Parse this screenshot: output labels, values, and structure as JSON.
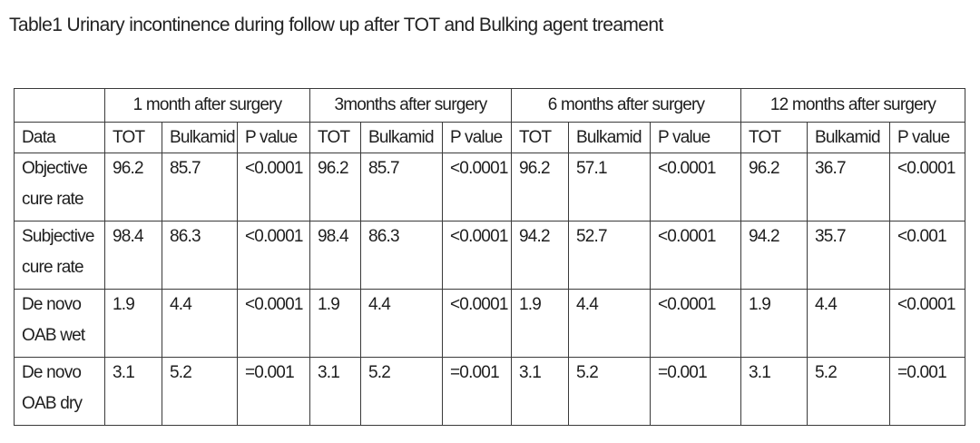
{
  "caption": "Table1 Urinary incontinence during follow up after TOT and Bulking agent treament",
  "table": {
    "groups": [
      "1 month after surgery",
      "3months after surgery",
      "6 months after surgery",
      "12 months after surgery"
    ],
    "subheaders": [
      "Data",
      "TOT",
      "Bulkamid",
      "P value",
      "TOT",
      "Bulkamid",
      "P value",
      "TOT",
      "Bulkamid",
      "P value",
      "TOT",
      "Bulkamid",
      "P value"
    ],
    "rows": [
      {
        "label": [
          "Objective",
          "cure rate"
        ],
        "cells": [
          "96.2",
          "85.7",
          "<0.0001",
          "96.2",
          "85.7",
          "<0.0001",
          "96.2",
          "57.1",
          "<0.0001",
          "96.2",
          "36.7",
          "<0.0001"
        ]
      },
      {
        "label": [
          "Subjective",
          "cure rate"
        ],
        "cells": [
          "98.4",
          "86.3",
          "<0.0001",
          "98.4",
          "86.3",
          "<0.0001",
          "94.2",
          "52.7",
          "<0.0001",
          "94.2",
          "35.7",
          "<0.001"
        ]
      },
      {
        "label": [
          "De novo",
          "OAB wet"
        ],
        "cells": [
          "1.9",
          "4.4",
          "<0.0001",
          "1.9",
          "4.4",
          "<0.0001",
          "1.9",
          "4.4",
          "<0.0001",
          "1.9",
          "4.4",
          "<0.0001"
        ]
      },
      {
        "label": [
          "De novo",
          "OAB dry"
        ],
        "cells": [
          "3.1",
          "5.2",
          "=0.001",
          "3.1",
          "5.2",
          "=0.001",
          "3.1",
          "5.2",
          "=0.001",
          "3.1",
          "5.2",
          "=0.001"
        ]
      }
    ]
  }
}
